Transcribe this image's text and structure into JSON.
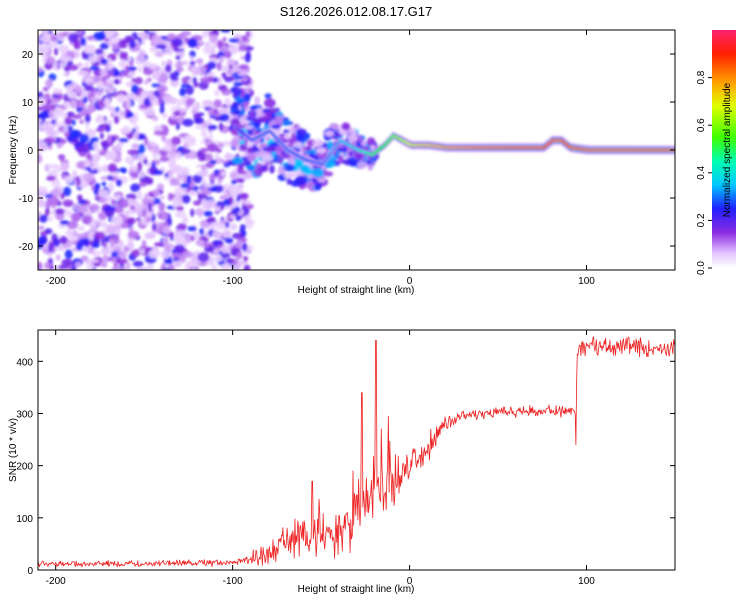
{
  "title": "S126.2026.012.08.17.G17",
  "chart_data": [
    {
      "type": "heatmap",
      "name": "spectrogram",
      "xlabel": "Height of straight line (km)",
      "ylabel": "Frequency (Hz)",
      "xlim": [
        -210,
        150
      ],
      "ylim": [
        -25,
        25
      ],
      "xticks": [
        -200,
        -100,
        0,
        100
      ],
      "xtick_labels": [
        "-200",
        "-100",
        "0",
        "100"
      ],
      "yticks": [
        -20,
        -10,
        0,
        10,
        20
      ],
      "ytick_labels": [
        "-20",
        "-10",
        "0",
        "10",
        "20"
      ],
      "colorbar": {
        "label": "Normalized spectral amplitude",
        "range": [
          0,
          1
        ],
        "ticks": [
          0.0,
          0.2,
          0.4,
          0.6,
          0.8
        ],
        "tick_labels": [
          "0.0",
          "0.2",
          "0.4",
          "0.6",
          "0.8"
        ]
      },
      "ridge": {
        "x": [
          -100,
          -90,
          -80,
          -70,
          -60,
          -50,
          -40,
          -30,
          -22,
          -15,
          -10,
          -5,
          0,
          10,
          20,
          40,
          60,
          75,
          80,
          85,
          90,
          100,
          120,
          150
        ],
        "freq": [
          5,
          2,
          4,
          0,
          -2,
          -3,
          2,
          0,
          -1,
          1,
          3,
          2,
          1,
          1,
          0.5,
          0.5,
          0.5,
          0.5,
          2,
          2,
          0.5,
          0,
          0,
          0
        ],
        "amplitude": [
          0.2,
          0.3,
          0.3,
          0.3,
          0.3,
          0.3,
          0.35,
          0.4,
          0.5,
          0.55,
          0.6,
          0.65,
          0.7,
          0.75,
          0.8,
          0.85,
          0.88,
          0.9,
          0.92,
          0.9,
          0.95,
          0.97,
          0.97,
          0.95
        ]
      }
    },
    {
      "type": "line",
      "name": "snr",
      "xlabel": "Height of straight line (km)",
      "ylabel": "SNR (10 * v/v)",
      "xlim": [
        -210,
        150
      ],
      "ylim": [
        0,
        460
      ],
      "xticks": [
        -200,
        -100,
        0,
        100
      ],
      "xtick_labels": [
        "-200",
        "-100",
        "0",
        "100"
      ],
      "yticks": [
        0,
        100,
        200,
        300,
        400
      ],
      "ytick_labels": [
        "0",
        "100",
        "200",
        "300",
        "400"
      ],
      "color": "#ee2222",
      "series": [
        {
          "name": "SNR",
          "x": [
            -210,
            -150,
            -100,
            -90,
            -80,
            -70,
            -60,
            -50,
            -40,
            -30,
            -25,
            -20,
            -15,
            -10,
            -5,
            0,
            10,
            15,
            20,
            30,
            40,
            60,
            80,
            90,
            94,
            95,
            100,
            110,
            120,
            150
          ],
          "y": [
            12,
            12,
            14,
            20,
            30,
            50,
            60,
            70,
            80,
            110,
            120,
            140,
            150,
            170,
            190,
            200,
            230,
            260,
            280,
            295,
            300,
            305,
            305,
            305,
            305,
            430,
            430,
            430,
            428,
            425
          ],
          "noise": [
            5,
            5,
            6,
            10,
            20,
            30,
            40,
            40,
            50,
            60,
            60,
            70,
            70,
            60,
            40,
            30,
            25,
            20,
            15,
            12,
            10,
            10,
            10,
            10,
            10,
            20,
            15,
            15,
            15,
            15
          ]
        }
      ],
      "spikes": [
        {
          "x": -19,
          "y": 440
        },
        {
          "x": -27,
          "y": 340
        },
        {
          "x": -55,
          "y": 170
        },
        {
          "x": -32,
          "y": 190
        },
        {
          "x": 94,
          "y": 240
        }
      ]
    }
  ]
}
